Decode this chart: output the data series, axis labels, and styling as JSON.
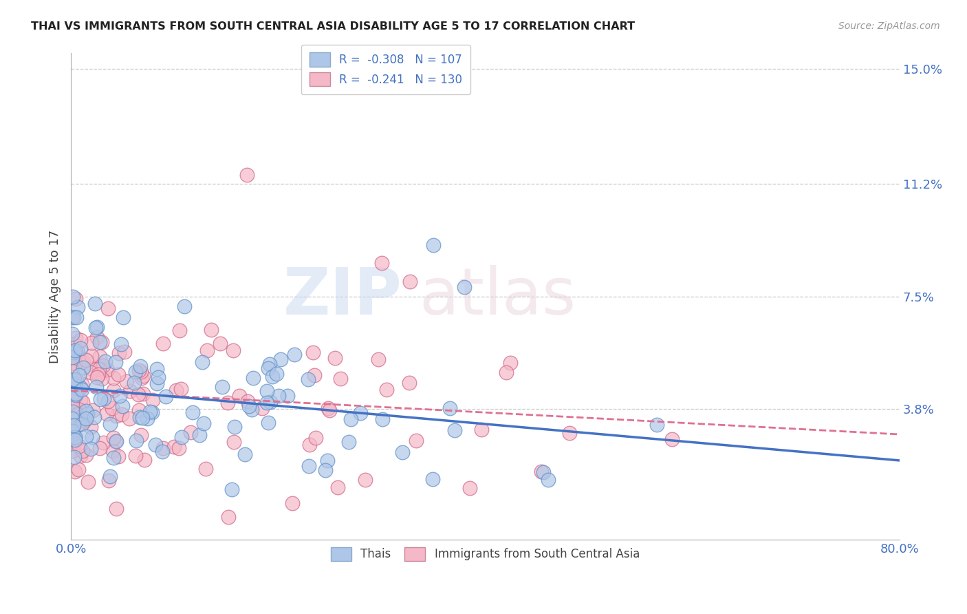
{
  "title": "THAI VS IMMIGRANTS FROM SOUTH CENTRAL ASIA DISABILITY AGE 5 TO 17 CORRELATION CHART",
  "source": "Source: ZipAtlas.com",
  "ylabel_label": "Disability Age 5 to 17",
  "legend_entries": [
    {
      "label": "R =  -0.308   N = 107",
      "color": "#aec6e8"
    },
    {
      "label": "R =  -0.241   N = 130",
      "color": "#f4b8c8"
    }
  ],
  "legend_labels": [
    "Thais",
    "Immigrants from South Central Asia"
  ],
  "blue_line_color": "#4472c4",
  "pink_line_color": "#e07090",
  "bg_color": "#ffffff",
  "grid_color": "#c8c8c8",
  "axis_label_color": "#4472c4",
  "thai_scatter_color": "#aec6e8",
  "thai_scatter_edge": "#6090c8",
  "immig_scatter_color": "#f4b8c8",
  "immig_scatter_edge": "#d06888",
  "xlim": [
    0.0,
    0.8
  ],
  "ylim": [
    -0.005,
    0.155
  ],
  "yticks": [
    0.038,
    0.075,
    0.112,
    0.15
  ],
  "ytick_labels": [
    "3.8%",
    "7.5%",
    "11.2%",
    "15.0%"
  ],
  "xticks": [
    0.0,
    0.16,
    0.32,
    0.48,
    0.64,
    0.8
  ],
  "xtick_labels": [
    "0.0%",
    "",
    "",
    "",
    "",
    "80.0%"
  ],
  "blue_intercept": 0.045,
  "blue_slope": -0.03,
  "pink_intercept": 0.044,
  "pink_slope": -0.018
}
